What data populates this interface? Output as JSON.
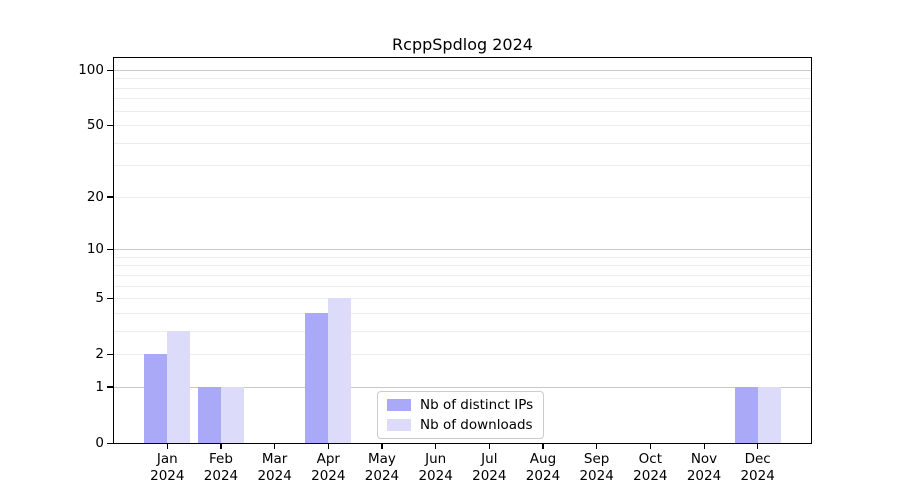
{
  "title": "RcppSpdlog 2024",
  "chart_data": {
    "type": "bar",
    "x_categories": [
      {
        "month": "Jan",
        "year": "2024"
      },
      {
        "month": "Feb",
        "year": "2024"
      },
      {
        "month": "Mar",
        "year": "2024"
      },
      {
        "month": "Apr",
        "year": "2024"
      },
      {
        "month": "May",
        "year": "2024"
      },
      {
        "month": "Jun",
        "year": "2024"
      },
      {
        "month": "Jul",
        "year": "2024"
      },
      {
        "month": "Aug",
        "year": "2024"
      },
      {
        "month": "Sep",
        "year": "2024"
      },
      {
        "month": "Oct",
        "year": "2024"
      },
      {
        "month": "Nov",
        "year": "2024"
      },
      {
        "month": "Dec",
        "year": "2024"
      }
    ],
    "series": [
      {
        "name": "Nb of distinct IPs",
        "color": "#a9a9f7",
        "values": [
          2,
          1,
          0,
          4,
          0,
          0,
          0,
          0,
          0,
          0,
          0,
          1
        ]
      },
      {
        "name": "Nb of downloads",
        "color": "#dcdcfa",
        "values": [
          3,
          1,
          0,
          5,
          0,
          0,
          0,
          0,
          0,
          0,
          0,
          1
        ]
      }
    ],
    "y_axis": {
      "scale": "log1p",
      "ylim": [
        0,
        100
      ],
      "tick_values": [
        0,
        1,
        2,
        5,
        10,
        20,
        50,
        100
      ],
      "tick_labels": [
        "0",
        "1",
        "2",
        "5",
        "10",
        "20",
        "50",
        "100"
      ],
      "major_grid_values": [
        1,
        10,
        100
      ],
      "minor_grid_values": [
        2,
        3,
        4,
        5,
        6,
        7,
        8,
        9,
        20,
        30,
        40,
        50,
        60,
        70,
        80,
        90
      ]
    },
    "grid": true,
    "legend_position": "lower-center"
  },
  "colors": {
    "background": "#ffffff",
    "text": "#000000",
    "spine": "#000000",
    "major_grid": "#c8c8c8",
    "minor_grid": "#ececec",
    "legend_border": "#cccccc"
  }
}
